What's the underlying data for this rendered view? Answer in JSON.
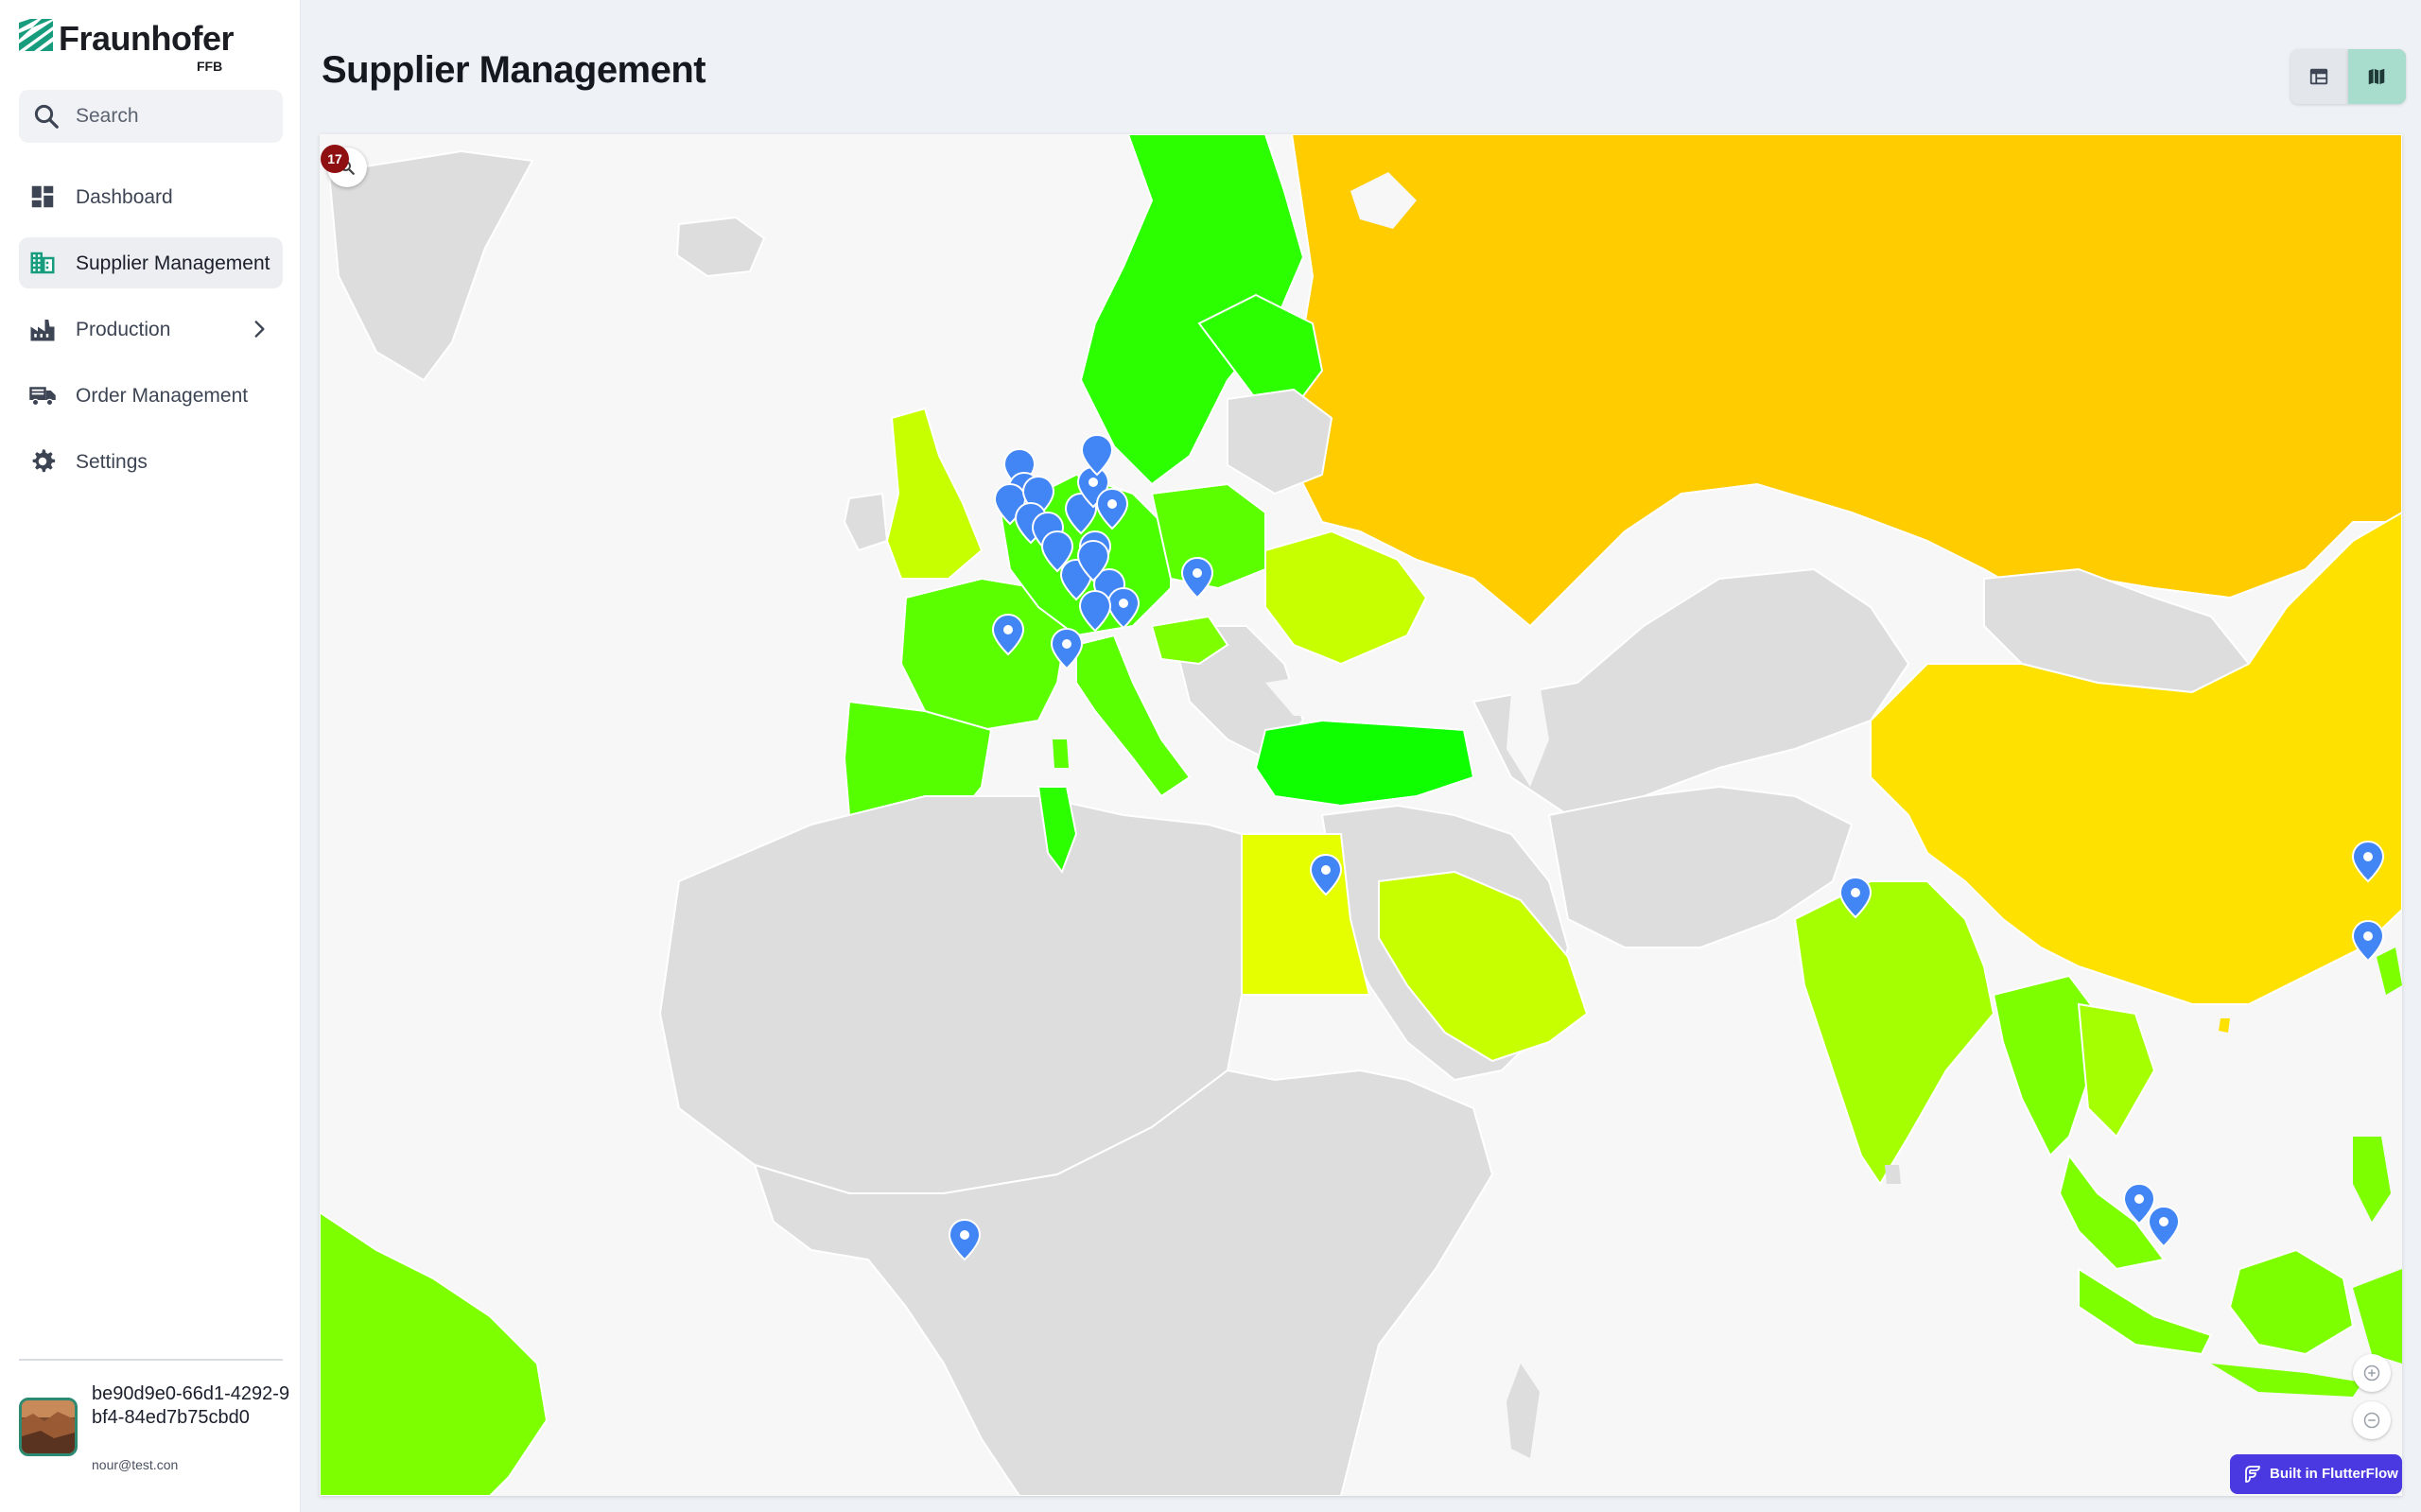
{
  "app": {
    "logo_name": "Fraunhofer",
    "logo_sub": "FFB",
    "brand_color": "#179c7d"
  },
  "search": {
    "placeholder": "Search"
  },
  "sidebar": {
    "items": [
      {
        "label": "Dashboard",
        "icon": "dashboard-icon",
        "active": false
      },
      {
        "label": "Supplier Management",
        "icon": "domain-icon",
        "active": true
      },
      {
        "label": "Production",
        "icon": "factory-icon",
        "active": false,
        "has_submenu": true
      },
      {
        "label": "Order Management",
        "icon": "truck-icon",
        "active": false
      },
      {
        "label": "Settings",
        "icon": "gear-icon",
        "active": false
      }
    ]
  },
  "user": {
    "id": "be90d9e0-66d1-4292-9bf4-84ed7b75cbd0",
    "email": "nour@test.con"
  },
  "page": {
    "title": "Supplier Management",
    "view_toggle": {
      "options": [
        "table",
        "map"
      ],
      "selected": "map"
    }
  },
  "map": {
    "cluster_count": "17",
    "legend_colors": {
      "very_high": "#ffcc00",
      "high": "#ffe100",
      "medium": "#d5ff00",
      "low": "#7dff00",
      "very_low": "#2cff00",
      "no_data": "#dddddd"
    }
  },
  "badge": {
    "label": "Built in FlutterFlow"
  }
}
